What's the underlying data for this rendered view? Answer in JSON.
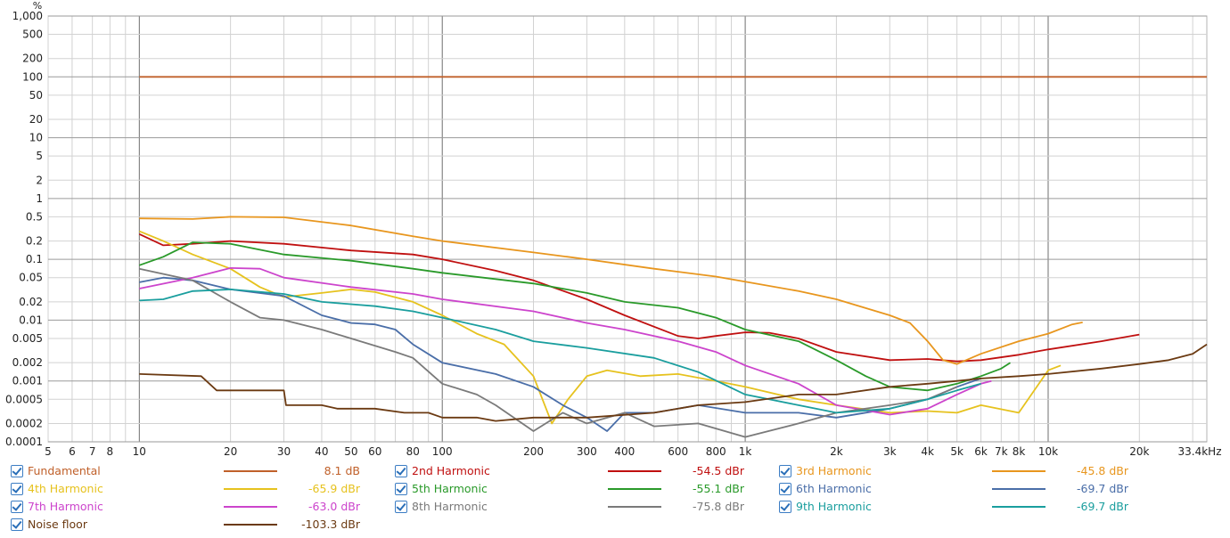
{
  "chart_data": {
    "type": "line",
    "x_unit": "kHz",
    "y_unit": "%",
    "x_log": true,
    "y_log": true,
    "xlim": [
      5,
      33400
    ],
    "ylim": [
      0.0001,
      1000
    ],
    "grid": true,
    "x_ticks": [
      {
        "v": 5,
        "label": "5"
      },
      {
        "v": 6,
        "label": "6"
      },
      {
        "v": 7,
        "label": "7"
      },
      {
        "v": 8,
        "label": "8"
      },
      {
        "v": 10,
        "label": "10"
      },
      {
        "v": 20,
        "label": "20"
      },
      {
        "v": 30,
        "label": "30"
      },
      {
        "v": 40,
        "label": "40"
      },
      {
        "v": 50,
        "label": "50"
      },
      {
        "v": 60,
        "label": "60"
      },
      {
        "v": 80,
        "label": "80"
      },
      {
        "v": 100,
        "label": "100"
      },
      {
        "v": 200,
        "label": "200"
      },
      {
        "v": 300,
        "label": "300"
      },
      {
        "v": 400,
        "label": "400"
      },
      {
        "v": 600,
        "label": "600"
      },
      {
        "v": 800,
        "label": "800"
      },
      {
        "v": 1000,
        "label": "1k"
      },
      {
        "v": 2000,
        "label": "2k"
      },
      {
        "v": 3000,
        "label": "3k"
      },
      {
        "v": 4000,
        "label": "4k"
      },
      {
        "v": 5000,
        "label": "5k"
      },
      {
        "v": 6000,
        "label": "6k"
      },
      {
        "v": 7000,
        "label": "7k"
      },
      {
        "v": 8000,
        "label": "8k"
      },
      {
        "v": 10000,
        "label": "10k"
      },
      {
        "v": 20000,
        "label": "20k"
      },
      {
        "v": 33400,
        "label": "33.4kHz"
      }
    ],
    "y_ticks": [
      {
        "v": 1000,
        "label": "1,000"
      },
      {
        "v": 500,
        "label": "500"
      },
      {
        "v": 200,
        "label": "200"
      },
      {
        "v": 100,
        "label": "100"
      },
      {
        "v": 50,
        "label": "50"
      },
      {
        "v": 20,
        "label": "20"
      },
      {
        "v": 10,
        "label": "10"
      },
      {
        "v": 5,
        "label": "5"
      },
      {
        "v": 2,
        "label": "2"
      },
      {
        "v": 1,
        "label": "1"
      },
      {
        "v": 0.5,
        "label": "0.5"
      },
      {
        "v": 0.2,
        "label": "0.2"
      },
      {
        "v": 0.1,
        "label": "0.1"
      },
      {
        "v": 0.05,
        "label": "0.05"
      },
      {
        "v": 0.02,
        "label": "0.02"
      },
      {
        "v": 0.01,
        "label": "0.01"
      },
      {
        "v": 0.005,
        "label": "0.005"
      },
      {
        "v": 0.002,
        "label": "0.002"
      },
      {
        "v": 0.001,
        "label": "0.001"
      },
      {
        "v": 0.0005,
        "label": "0.0005"
      },
      {
        "v": 0.0002,
        "label": "0.0002"
      },
      {
        "v": 0.0001,
        "label": "0.0001"
      }
    ],
    "series": [
      {
        "name": "Fundamental",
        "color": "#c0602a",
        "value_label": "8.1 dB",
        "points": [
          [
            10,
            100
          ],
          [
            33400,
            100
          ]
        ]
      },
      {
        "name": "2nd Harmonic",
        "color": "#c01010",
        "value_label": "-54.5 dBr",
        "points": [
          [
            10,
            0.26
          ],
          [
            12,
            0.17
          ],
          [
            15,
            0.18
          ],
          [
            20,
            0.2
          ],
          [
            30,
            0.18
          ],
          [
            50,
            0.14
          ],
          [
            80,
            0.12
          ],
          [
            100,
            0.1
          ],
          [
            150,
            0.065
          ],
          [
            200,
            0.045
          ],
          [
            300,
            0.022
          ],
          [
            400,
            0.012
          ],
          [
            600,
            0.0055
          ],
          [
            700,
            0.005
          ],
          [
            800,
            0.0055
          ],
          [
            1000,
            0.0063
          ],
          [
            1200,
            0.0062
          ],
          [
            1500,
            0.005
          ],
          [
            2000,
            0.003
          ],
          [
            3000,
            0.0022
          ],
          [
            4000,
            0.0023
          ],
          [
            5000,
            0.0021
          ],
          [
            6000,
            0.0022
          ],
          [
            8000,
            0.0027
          ],
          [
            10000,
            0.0033
          ],
          [
            15000,
            0.0045
          ],
          [
            20000,
            0.0058
          ]
        ]
      },
      {
        "name": "3rd Harmonic",
        "color": "#e8961e",
        "value_label": "-45.8 dBr",
        "points": [
          [
            10,
            0.47
          ],
          [
            15,
            0.46
          ],
          [
            20,
            0.5
          ],
          [
            30,
            0.49
          ],
          [
            50,
            0.36
          ],
          [
            80,
            0.24
          ],
          [
            100,
            0.2
          ],
          [
            200,
            0.13
          ],
          [
            300,
            0.1
          ],
          [
            500,
            0.07
          ],
          [
            800,
            0.052
          ],
          [
            1000,
            0.043
          ],
          [
            1500,
            0.03
          ],
          [
            2000,
            0.022
          ],
          [
            3000,
            0.012
          ],
          [
            3500,
            0.009
          ],
          [
            4000,
            0.0045
          ],
          [
            4500,
            0.0022
          ],
          [
            5000,
            0.0019
          ],
          [
            6000,
            0.0028
          ],
          [
            8000,
            0.0045
          ],
          [
            10000,
            0.006
          ],
          [
            12000,
            0.0085
          ],
          [
            13000,
            0.0092
          ]
        ]
      },
      {
        "name": "4th Harmonic",
        "color": "#e6c21e",
        "value_label": "-65.9 dBr",
        "points": [
          [
            10,
            0.29
          ],
          [
            12,
            0.2
          ],
          [
            15,
            0.12
          ],
          [
            20,
            0.07
          ],
          [
            25,
            0.035
          ],
          [
            30,
            0.024
          ],
          [
            40,
            0.028
          ],
          [
            50,
            0.032
          ],
          [
            60,
            0.029
          ],
          [
            80,
            0.02
          ],
          [
            100,
            0.012
          ],
          [
            130,
            0.006
          ],
          [
            160,
            0.004
          ],
          [
            200,
            0.0012
          ],
          [
            230,
            0.0002
          ],
          [
            260,
            0.0005
          ],
          [
            300,
            0.0012
          ],
          [
            350,
            0.0015
          ],
          [
            450,
            0.0012
          ],
          [
            600,
            0.0013
          ],
          [
            800,
            0.001
          ],
          [
            1000,
            0.0008
          ],
          [
            1500,
            0.0005
          ],
          [
            2000,
            0.0004
          ],
          [
            3000,
            0.0003
          ],
          [
            4000,
            0.00032
          ],
          [
            5000,
            0.0003
          ],
          [
            6000,
            0.0004
          ],
          [
            8000,
            0.0003
          ],
          [
            10000,
            0.0015
          ],
          [
            11000,
            0.0018
          ]
        ]
      },
      {
        "name": "5th Harmonic",
        "color": "#2a9a2a",
        "value_label": "-55.1 dBr",
        "points": [
          [
            10,
            0.08
          ],
          [
            12,
            0.11
          ],
          [
            15,
            0.19
          ],
          [
            20,
            0.18
          ],
          [
            30,
            0.12
          ],
          [
            50,
            0.095
          ],
          [
            80,
            0.07
          ],
          [
            100,
            0.06
          ],
          [
            200,
            0.04
          ],
          [
            300,
            0.028
          ],
          [
            400,
            0.02
          ],
          [
            600,
            0.016
          ],
          [
            800,
            0.011
          ],
          [
            1000,
            0.007
          ],
          [
            1500,
            0.0045
          ],
          [
            2000,
            0.0022
          ],
          [
            2500,
            0.0012
          ],
          [
            3000,
            0.0008
          ],
          [
            4000,
            0.0007
          ],
          [
            5000,
            0.0009
          ],
          [
            6000,
            0.0012
          ],
          [
            7000,
            0.0016
          ],
          [
            7500,
            0.002
          ]
        ]
      },
      {
        "name": "6th Harmonic",
        "color": "#4a6ea8",
        "value_label": "-69.7 dBr",
        "points": [
          [
            10,
            0.042
          ],
          [
            12,
            0.05
          ],
          [
            15,
            0.045
          ],
          [
            20,
            0.032
          ],
          [
            30,
            0.025
          ],
          [
            40,
            0.012
          ],
          [
            50,
            0.009
          ],
          [
            60,
            0.0085
          ],
          [
            70,
            0.007
          ],
          [
            80,
            0.004
          ],
          [
            100,
            0.002
          ],
          [
            150,
            0.0013
          ],
          [
            200,
            0.0008
          ],
          [
            250,
            0.0004
          ],
          [
            300,
            0.00025
          ],
          [
            350,
            0.00015
          ],
          [
            400,
            0.0003
          ],
          [
            500,
            0.0003
          ],
          [
            700,
            0.0004
          ],
          [
            1000,
            0.0003
          ],
          [
            1500,
            0.0003
          ],
          [
            2000,
            0.00025
          ],
          [
            3000,
            0.00035
          ],
          [
            4000,
            0.0005
          ],
          [
            5000,
            0.0008
          ],
          [
            6000,
            0.0011
          ]
        ]
      },
      {
        "name": "7th Harmonic",
        "color": "#cc44cc",
        "value_label": "-63.0 dBr",
        "points": [
          [
            10,
            0.033
          ],
          [
            15,
            0.05
          ],
          [
            20,
            0.072
          ],
          [
            25,
            0.07
          ],
          [
            30,
            0.05
          ],
          [
            50,
            0.035
          ],
          [
            80,
            0.027
          ],
          [
            100,
            0.022
          ],
          [
            200,
            0.014
          ],
          [
            300,
            0.009
          ],
          [
            400,
            0.007
          ],
          [
            600,
            0.0045
          ],
          [
            800,
            0.003
          ],
          [
            1000,
            0.0018
          ],
          [
            1500,
            0.0009
          ],
          [
            2000,
            0.0004
          ],
          [
            3000,
            0.00028
          ],
          [
            4000,
            0.00035
          ],
          [
            5000,
            0.0006
          ],
          [
            6000,
            0.0009
          ],
          [
            6500,
            0.001
          ]
        ]
      },
      {
        "name": "8th Harmonic",
        "color": "#7a7a7a",
        "value_label": "-75.8 dBr",
        "points": [
          [
            10,
            0.07
          ],
          [
            15,
            0.045
          ],
          [
            20,
            0.02
          ],
          [
            25,
            0.011
          ],
          [
            30,
            0.01
          ],
          [
            40,
            0.007
          ],
          [
            50,
            0.005
          ],
          [
            70,
            0.003
          ],
          [
            80,
            0.0024
          ],
          [
            100,
            0.0009
          ],
          [
            130,
            0.0006
          ],
          [
            150,
            0.0004
          ],
          [
            200,
            0.00015
          ],
          [
            250,
            0.0003
          ],
          [
            300,
            0.0002
          ],
          [
            400,
            0.0003
          ],
          [
            500,
            0.00018
          ],
          [
            700,
            0.0002
          ],
          [
            1000,
            0.00012
          ],
          [
            1500,
            0.0002
          ],
          [
            2000,
            0.0003
          ],
          [
            3000,
            0.0004
          ],
          [
            4000,
            0.0005
          ],
          [
            5000,
            0.0008
          ]
        ]
      },
      {
        "name": "9th Harmonic",
        "color": "#1a9e9e",
        "value_label": "-69.7 dBr",
        "points": [
          [
            10,
            0.021
          ],
          [
            12,
            0.022
          ],
          [
            15,
            0.03
          ],
          [
            20,
            0.032
          ],
          [
            30,
            0.027
          ],
          [
            40,
            0.02
          ],
          [
            60,
            0.017
          ],
          [
            80,
            0.014
          ],
          [
            100,
            0.011
          ],
          [
            150,
            0.007
          ],
          [
            200,
            0.0045
          ],
          [
            300,
            0.0035
          ],
          [
            500,
            0.0024
          ],
          [
            700,
            0.0014
          ],
          [
            1000,
            0.0006
          ],
          [
            1500,
            0.0004
          ],
          [
            2000,
            0.0003
          ],
          [
            3000,
            0.00035
          ],
          [
            4000,
            0.0005
          ],
          [
            5000,
            0.0007
          ],
          [
            6000,
            0.0009
          ]
        ]
      },
      {
        "name": "Noise floor",
        "color": "#6b3a12",
        "value_label": "-103.3 dBr",
        "points": [
          [
            10,
            0.0013
          ],
          [
            16,
            0.0012
          ],
          [
            18,
            0.0007
          ],
          [
            30,
            0.0007
          ],
          [
            30.5,
            0.0004
          ],
          [
            40,
            0.0004
          ],
          [
            45,
            0.00035
          ],
          [
            60,
            0.00035
          ],
          [
            75,
            0.0003
          ],
          [
            90,
            0.0003
          ],
          [
            100,
            0.00025
          ],
          [
            130,
            0.00025
          ],
          [
            150,
            0.00022
          ],
          [
            200,
            0.00025
          ],
          [
            300,
            0.00025
          ],
          [
            500,
            0.0003
          ],
          [
            700,
            0.0004
          ],
          [
            1000,
            0.00045
          ],
          [
            1500,
            0.0006
          ],
          [
            2000,
            0.0006
          ],
          [
            3000,
            0.0008
          ],
          [
            4000,
            0.0009
          ],
          [
            5000,
            0.001
          ],
          [
            6000,
            0.0011
          ],
          [
            8000,
            0.0012
          ],
          [
            10000,
            0.0013
          ],
          [
            15000,
            0.0016
          ],
          [
            20000,
            0.0019
          ],
          [
            25000,
            0.0022
          ],
          [
            30000,
            0.0028
          ],
          [
            33400,
            0.004
          ]
        ]
      }
    ]
  },
  "axes": {
    "y_unit_label": "%"
  },
  "legend": {
    "items": [
      {
        "name": "Fundamental",
        "value": "8.1 dB",
        "color": "#c0602a"
      },
      {
        "name": "2nd Harmonic",
        "value": "-54.5 dBr",
        "color": "#c01010"
      },
      {
        "name": "3rd Harmonic",
        "value": "-45.8 dBr",
        "color": "#e8961e"
      },
      {
        "name": "4th Harmonic",
        "value": "-65.9 dBr",
        "color": "#e6c21e"
      },
      {
        "name": "5th Harmonic",
        "value": "-55.1 dBr",
        "color": "#2a9a2a"
      },
      {
        "name": "6th Harmonic",
        "value": "-69.7 dBr",
        "color": "#4a6ea8"
      },
      {
        "name": "7th Harmonic",
        "value": "-63.0 dBr",
        "color": "#cc44cc"
      },
      {
        "name": "8th Harmonic",
        "value": "-75.8 dBr",
        "color": "#7a7a7a"
      },
      {
        "name": "9th Harmonic",
        "value": "-69.7 dBr",
        "color": "#1a9e9e"
      },
      {
        "name": "Noise floor",
        "value": "-103.3 dBr",
        "color": "#6b3a12"
      }
    ]
  }
}
